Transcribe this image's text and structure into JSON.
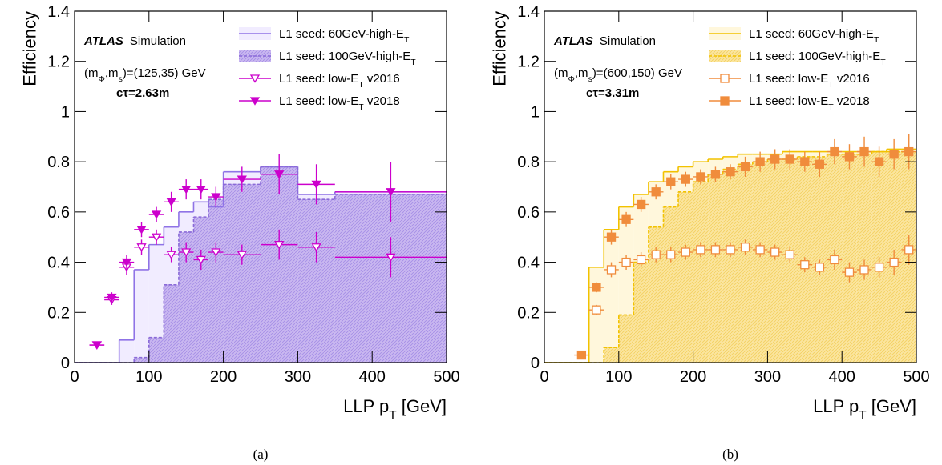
{
  "chart_data": [
    {
      "type": "histogram",
      "caption": "(a)",
      "ylabel": "Efficiency",
      "xlabel": [
        "LLP p",
        "T",
        " [GeV]"
      ],
      "xlim": [
        0,
        500
      ],
      "ylim": [
        0,
        1.4
      ],
      "xticks": [
        0,
        100,
        200,
        300,
        400,
        500
      ],
      "yticks": [
        0,
        0.2,
        0.4,
        0.6,
        0.8,
        1,
        1.2,
        1.4
      ],
      "annotations": {
        "experiment": "ATLAS",
        "status": "Simulation",
        "model": [
          "(m",
          "Φ",
          ",m",
          "s",
          ")=(125,35) GeV"
        ],
        "lifetime": "cτ=2.63m"
      },
      "histograms": [
        {
          "name": [
            "L1 seed: 60GeV-high-E",
            "T"
          ],
          "color": "#8f73e6",
          "fill": "#f1ecff",
          "dashed": false,
          "bins": [
            0,
            20,
            40,
            60,
            80,
            100,
            120,
            140,
            160,
            180,
            200,
            250,
            300,
            350,
            500
          ],
          "values": [
            0,
            0,
            0,
            0.09,
            0.37,
            0.47,
            0.54,
            0.6,
            0.64,
            0.62,
            0.76,
            0.78,
            0.67,
            0.68
          ]
        },
        {
          "name": [
            "L1 seed: 100GeV-high-E",
            "T"
          ],
          "color": "#8a6ad8",
          "fill": "#c9b7f0",
          "dashed": true,
          "bins": [
            0,
            20,
            40,
            60,
            80,
            100,
            120,
            140,
            160,
            180,
            200,
            250,
            300,
            350,
            500
          ],
          "values": [
            0,
            0,
            0,
            0,
            0.02,
            0.1,
            0.31,
            0.52,
            0.58,
            0.65,
            0.71,
            0.78,
            0.65,
            0.67
          ]
        }
      ],
      "points": [
        {
          "name": [
            "L1 seed: low-E",
            "T",
            " v2016"
          ],
          "color": "#cc00cc",
          "marker": "triangle-down",
          "filled": false,
          "x": [
            30,
            50,
            70,
            90,
            110,
            130,
            150,
            170,
            190,
            225,
            275,
            325,
            425
          ],
          "xerr": [
            10,
            10,
            10,
            10,
            10,
            10,
            10,
            10,
            10,
            25,
            25,
            25,
            75
          ],
          "values": [
            0.07,
            0.25,
            0.38,
            0.46,
            0.5,
            0.43,
            0.44,
            0.41,
            0.44,
            0.43,
            0.47,
            0.46,
            0.42
          ],
          "yerr": [
            0.01,
            0.02,
            0.03,
            0.03,
            0.03,
            0.03,
            0.04,
            0.04,
            0.04,
            0.04,
            0.06,
            0.06,
            0.08
          ]
        },
        {
          "name": [
            "L1 seed: low-E",
            "T",
            " v2018"
          ],
          "color": "#cc00cc",
          "marker": "triangle-down",
          "filled": true,
          "x": [
            30,
            50,
            70,
            90,
            110,
            130,
            150,
            170,
            190,
            225,
            275,
            325,
            425
          ],
          "xerr": [
            10,
            10,
            10,
            10,
            10,
            10,
            10,
            10,
            10,
            25,
            25,
            25,
            75
          ],
          "values": [
            0.07,
            0.26,
            0.4,
            0.53,
            0.59,
            0.64,
            0.69,
            0.69,
            0.66,
            0.73,
            0.75,
            0.71,
            0.68
          ],
          "yerr": [
            0.01,
            0.02,
            0.03,
            0.03,
            0.03,
            0.04,
            0.04,
            0.04,
            0.04,
            0.05,
            0.08,
            0.08,
            0.12
          ]
        }
      ]
    },
    {
      "type": "histogram",
      "caption": "(b)",
      "ylabel": "Efficiency",
      "xlabel": [
        "LLP p",
        "T",
        " [GeV]"
      ],
      "xlim": [
        0,
        500
      ],
      "ylim": [
        0,
        1.4
      ],
      "xticks": [
        0,
        100,
        200,
        300,
        400,
        500
      ],
      "yticks": [
        0,
        0.2,
        0.4,
        0.6,
        0.8,
        1,
        1.2,
        1.4
      ],
      "annotations": {
        "experiment": "ATLAS",
        "status": "Simulation",
        "model": [
          "(m",
          "Φ",
          ",m",
          "s",
          ")=(600,150) GeV"
        ],
        "lifetime": "cτ=3.31m"
      },
      "histograms": [
        {
          "name": [
            "L1 seed: 60GeV-high-E",
            "T"
          ],
          "color": "#f2c200",
          "fill": "#fff7dc",
          "dashed": false,
          "bins": [
            0,
            20,
            40,
            60,
            80,
            100,
            120,
            140,
            160,
            180,
            200,
            220,
            240,
            260,
            280,
            300,
            320,
            340,
            360,
            380,
            400,
            420,
            440,
            460,
            480,
            500
          ],
          "values": [
            0,
            0,
            0,
            0.38,
            0.53,
            0.62,
            0.67,
            0.72,
            0.76,
            0.78,
            0.8,
            0.81,
            0.82,
            0.83,
            0.83,
            0.83,
            0.84,
            0.84,
            0.84,
            0.84,
            0.84,
            0.84,
            0.84,
            0.85,
            0.85
          ]
        },
        {
          "name": [
            "L1 seed: 100GeV-high-E",
            "T"
          ],
          "color": "#f2c200",
          "fill": "#fbe59e",
          "dashed": true,
          "bins": [
            0,
            20,
            40,
            60,
            80,
            100,
            120,
            140,
            160,
            180,
            200,
            220,
            240,
            260,
            280,
            300,
            320,
            340,
            360,
            380,
            400,
            420,
            440,
            460,
            480,
            500
          ],
          "values": [
            0,
            0,
            0,
            0,
            0.06,
            0.19,
            0.4,
            0.54,
            0.62,
            0.68,
            0.72,
            0.75,
            0.77,
            0.79,
            0.8,
            0.81,
            0.81,
            0.82,
            0.82,
            0.83,
            0.83,
            0.83,
            0.84,
            0.84,
            0.84
          ]
        }
      ],
      "points": [
        {
          "name": [
            "L1 seed: low-E",
            "T",
            " v2016"
          ],
          "color": "#f08c3c",
          "marker": "square",
          "filled": false,
          "x": [
            70,
            90,
            110,
            130,
            150,
            170,
            190,
            210,
            230,
            250,
            270,
            290,
            310,
            330,
            350,
            370,
            390,
            410,
            430,
            450,
            470,
            490
          ],
          "xerr": [
            10,
            10,
            10,
            10,
            10,
            10,
            10,
            10,
            10,
            10,
            10,
            10,
            10,
            10,
            10,
            10,
            10,
            10,
            10,
            10,
            10,
            10
          ],
          "values": [
            0.21,
            0.37,
            0.4,
            0.41,
            0.43,
            0.43,
            0.44,
            0.45,
            0.45,
            0.45,
            0.46,
            0.45,
            0.44,
            0.43,
            0.39,
            0.38,
            0.41,
            0.36,
            0.37,
            0.38,
            0.4,
            0.45
          ],
          "yerr": [
            0.02,
            0.03,
            0.03,
            0.03,
            0.03,
            0.03,
            0.03,
            0.03,
            0.03,
            0.03,
            0.03,
            0.03,
            0.03,
            0.03,
            0.03,
            0.03,
            0.04,
            0.04,
            0.04,
            0.04,
            0.05,
            0.06
          ]
        },
        {
          "name": [
            "L1 seed: low-E",
            "T",
            " v2018"
          ],
          "color": "#f08c3c",
          "marker": "square",
          "filled": true,
          "x": [
            50,
            70,
            90,
            110,
            130,
            150,
            170,
            190,
            210,
            230,
            250,
            270,
            290,
            310,
            330,
            350,
            370,
            390,
            410,
            430,
            450,
            470,
            490
          ],
          "xerr": [
            10,
            10,
            10,
            10,
            10,
            10,
            10,
            10,
            10,
            10,
            10,
            10,
            10,
            10,
            10,
            10,
            10,
            10,
            10,
            10,
            10,
            10,
            10
          ],
          "values": [
            0.03,
            0.3,
            0.5,
            0.57,
            0.63,
            0.68,
            0.72,
            0.73,
            0.74,
            0.75,
            0.76,
            0.78,
            0.8,
            0.81,
            0.81,
            0.8,
            0.79,
            0.84,
            0.82,
            0.84,
            0.8,
            0.83,
            0.84
          ],
          "yerr": [
            0.01,
            0.02,
            0.03,
            0.03,
            0.03,
            0.03,
            0.03,
            0.03,
            0.03,
            0.03,
            0.03,
            0.04,
            0.04,
            0.04,
            0.04,
            0.04,
            0.05,
            0.05,
            0.05,
            0.06,
            0.06,
            0.06,
            0.07
          ]
        }
      ]
    }
  ]
}
